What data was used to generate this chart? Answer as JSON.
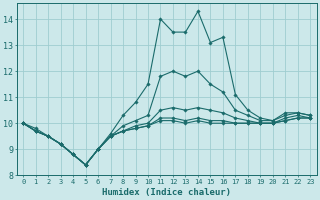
{
  "xlabel": "Humidex (Indice chaleur)",
  "bg_color": "#cce8ea",
  "grid_color": "#9fcdd0",
  "line_color": "#1a6b6b",
  "xlim": [
    -0.5,
    23.5
  ],
  "ylim": [
    8.0,
    14.6
  ],
  "yticks": [
    8,
    9,
    10,
    11,
    12,
    13,
    14
  ],
  "xticks": [
    0,
    1,
    2,
    3,
    4,
    5,
    6,
    7,
    8,
    9,
    10,
    11,
    12,
    13,
    14,
    15,
    16,
    17,
    18,
    19,
    20,
    21,
    22,
    23
  ],
  "series": [
    [
      10.0,
      9.8,
      9.5,
      9.2,
      8.8,
      8.4,
      9.0,
      9.6,
      10.3,
      10.8,
      11.5,
      14.0,
      13.5,
      13.5,
      14.3,
      13.1,
      13.3,
      11.1,
      10.5,
      10.2,
      10.1,
      10.4,
      10.4,
      10.3
    ],
    [
      10.0,
      9.7,
      9.5,
      9.2,
      8.8,
      8.4,
      9.0,
      9.5,
      9.9,
      10.1,
      10.3,
      11.8,
      12.0,
      11.8,
      12.0,
      11.5,
      11.2,
      10.5,
      10.3,
      10.1,
      10.1,
      10.3,
      10.4,
      10.3
    ],
    [
      10.0,
      9.7,
      9.5,
      9.2,
      8.8,
      8.4,
      9.0,
      9.5,
      9.7,
      9.9,
      10.0,
      10.5,
      10.6,
      10.5,
      10.6,
      10.5,
      10.4,
      10.2,
      10.1,
      10.0,
      10.0,
      10.2,
      10.3,
      10.2
    ],
    [
      10.0,
      9.7,
      9.5,
      9.2,
      8.8,
      8.4,
      9.0,
      9.5,
      9.7,
      9.8,
      9.9,
      10.2,
      10.2,
      10.1,
      10.2,
      10.1,
      10.1,
      10.0,
      10.0,
      10.0,
      10.0,
      10.1,
      10.2,
      10.2
    ],
    [
      10.0,
      9.7,
      9.5,
      9.2,
      8.8,
      8.4,
      9.0,
      9.5,
      9.7,
      9.8,
      9.9,
      10.1,
      10.1,
      10.0,
      10.1,
      10.0,
      10.0,
      10.0,
      10.0,
      10.0,
      10.0,
      10.1,
      10.2,
      10.2
    ]
  ]
}
